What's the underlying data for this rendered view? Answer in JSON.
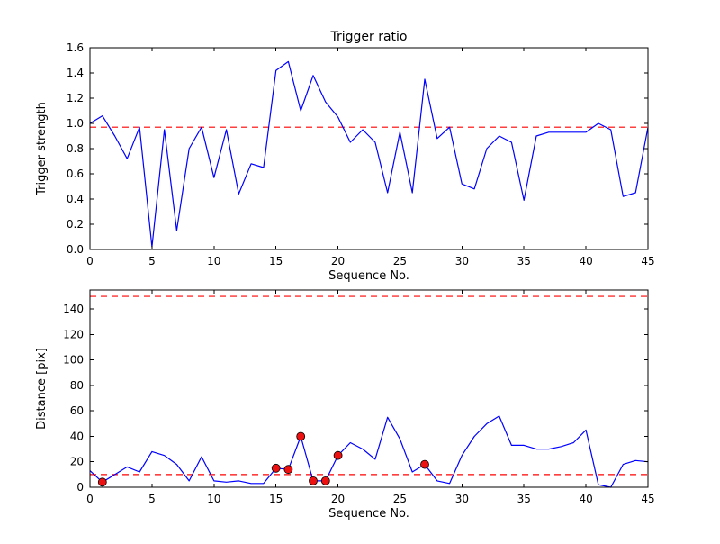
{
  "figure": {
    "background": "#ffffff",
    "line_color": "#0000ff",
    "dashed_color": "#ff0000",
    "marker_face_color": "#ee1111",
    "marker_edge_color": "#000000",
    "axis_color": "#000000"
  },
  "chart_data": [
    {
      "id": "trigger-ratio",
      "type": "line",
      "title": "Trigger ratio",
      "xlabel": "Sequence No.",
      "ylabel": "Trigger strength",
      "xlim": [
        0,
        45
      ],
      "ylim": [
        0,
        1.6
      ],
      "xticks": [
        0,
        5,
        10,
        15,
        20,
        25,
        30,
        35,
        40,
        45
      ],
      "xticklabels": [
        "0",
        "5",
        "10",
        "15",
        "20",
        "25",
        "30",
        "35",
        "40",
        "45"
      ],
      "yticks": [
        0.0,
        0.2,
        0.4,
        0.6,
        0.8,
        1.0,
        1.2,
        1.4,
        1.6
      ],
      "yticklabels": [
        "0.0",
        "0.2",
        "0.4",
        "0.6",
        "0.8",
        "1.0",
        "1.2",
        "1.4",
        "1.6"
      ],
      "grid": false,
      "legend": null,
      "threshold_lines": [
        {
          "y": 0.97,
          "color": "#ff0000",
          "style": "dashed"
        }
      ],
      "series": [
        {
          "name": "trigger-strength",
          "color": "#0000ff",
          "x": [
            0,
            1,
            2,
            3,
            4,
            5,
            6,
            7,
            8,
            9,
            10,
            11,
            12,
            13,
            14,
            15,
            16,
            17,
            18,
            19,
            20,
            21,
            22,
            23,
            24,
            25,
            26,
            27,
            28,
            29,
            30,
            31,
            32,
            33,
            34,
            35,
            36,
            37,
            38,
            39,
            40,
            41,
            42,
            43,
            44,
            45
          ],
          "y": [
            1.0,
            1.06,
            0.9,
            0.72,
            0.97,
            0.02,
            0.95,
            0.15,
            0.8,
            0.97,
            0.57,
            0.95,
            0.44,
            0.68,
            0.65,
            1.42,
            1.49,
            1.1,
            1.38,
            1.17,
            1.05,
            0.85,
            0.95,
            0.85,
            0.45,
            0.93,
            0.45,
            1.35,
            0.88,
            0.97,
            0.52,
            0.48,
            0.8,
            0.9,
            0.85,
            0.39,
            0.9,
            0.93,
            0.93,
            0.93,
            0.93,
            1.0,
            0.95,
            0.42,
            0.45,
            0.97
          ]
        }
      ],
      "markers": null
    },
    {
      "id": "distance",
      "type": "line",
      "title": "",
      "xlabel": "Sequence No.",
      "ylabel": "Distance [pix]",
      "xlim": [
        0,
        45
      ],
      "ylim": [
        0,
        155
      ],
      "xticks": [
        0,
        5,
        10,
        15,
        20,
        25,
        30,
        35,
        40,
        45
      ],
      "xticklabels": [
        "0",
        "5",
        "10",
        "15",
        "20",
        "25",
        "30",
        "35",
        "40",
        "45"
      ],
      "yticks": [
        0,
        20,
        40,
        60,
        80,
        100,
        120,
        140
      ],
      "yticklabels": [
        "0",
        "20",
        "40",
        "60",
        "80",
        "100",
        "120",
        "140"
      ],
      "grid": false,
      "legend": null,
      "threshold_lines": [
        {
          "y": 150,
          "color": "#ff0000",
          "style": "dashed"
        },
        {
          "y": 10,
          "color": "#ff0000",
          "style": "dashed"
        }
      ],
      "series": [
        {
          "name": "distance-pix",
          "color": "#0000ff",
          "x": [
            0,
            1,
            2,
            3,
            4,
            5,
            6,
            7,
            8,
            9,
            10,
            11,
            12,
            13,
            14,
            15,
            16,
            17,
            18,
            19,
            20,
            21,
            22,
            23,
            24,
            25,
            26,
            27,
            28,
            29,
            30,
            31,
            32,
            33,
            34,
            35,
            36,
            37,
            38,
            39,
            40,
            41,
            42,
            43,
            44,
            45
          ],
          "y": [
            13,
            4,
            10,
            16,
            12,
            28,
            25,
            18,
            5,
            24,
            5,
            4,
            5,
            3,
            3,
            15,
            14,
            40,
            5,
            5,
            25,
            35,
            30,
            22,
            55,
            38,
            12,
            18,
            5,
            3,
            25,
            40,
            50,
            56,
            33,
            33,
            30,
            30,
            32,
            35,
            45,
            2,
            0,
            18,
            21,
            20
          ]
        }
      ],
      "markers": {
        "name": "triggered-points",
        "x": [
          1,
          15,
          16,
          17,
          18,
          19,
          20,
          27
        ],
        "y": [
          4,
          15,
          14,
          40,
          5,
          5,
          25,
          18
        ]
      }
    }
  ]
}
